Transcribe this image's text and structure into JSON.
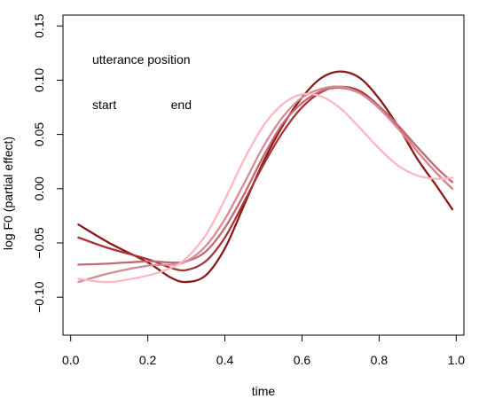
{
  "chart_data": {
    "type": "line",
    "title": "",
    "xlabel": "time",
    "ylabel": "log F0 (partial effect)",
    "xlim": [
      -0.02,
      1.02
    ],
    "ylim": [
      -0.135,
      0.16
    ],
    "xticks": [
      0.0,
      0.2,
      0.4,
      0.6,
      0.8,
      1.0
    ],
    "xtick_labels": [
      "0.0",
      "0.2",
      "0.4",
      "0.6",
      "0.8",
      "1.0"
    ],
    "yticks": [
      -0.1,
      -0.05,
      0.0,
      0.05,
      0.1,
      0.15
    ],
    "ytick_labels": [
      "−0.10",
      "−0.05",
      "0.00",
      "0.05",
      "0.10",
      "0.15"
    ],
    "grid": false,
    "legend": {
      "title": "utterance position",
      "placement": "top-left",
      "gradient_colors": [
        "#8b1a1a",
        "#ffb6c1"
      ],
      "low_label": "start",
      "high_label": "end"
    },
    "series": [
      {
        "color": "#8b1a1a",
        "x": [
          0.02,
          0.1,
          0.2,
          0.26,
          0.3,
          0.35,
          0.4,
          0.45,
          0.5,
          0.55,
          0.6,
          0.65,
          0.7,
          0.75,
          0.8,
          0.85,
          0.9,
          0.95,
          0.99
        ],
        "y": [
          -0.033,
          -0.05,
          -0.068,
          -0.082,
          -0.086,
          -0.08,
          -0.055,
          -0.015,
          0.025,
          0.058,
          0.084,
          0.102,
          0.108,
          0.102,
          0.083,
          0.057,
          0.027,
          0.002,
          -0.019
        ]
      },
      {
        "color": "#a8343a",
        "x": [
          0.02,
          0.1,
          0.2,
          0.26,
          0.3,
          0.35,
          0.4,
          0.45,
          0.5,
          0.55,
          0.6,
          0.65,
          0.7,
          0.75,
          0.8,
          0.85,
          0.9,
          0.95,
          0.99
        ],
        "y": [
          -0.045,
          -0.055,
          -0.065,
          -0.073,
          -0.075,
          -0.067,
          -0.045,
          -0.012,
          0.022,
          0.052,
          0.075,
          0.089,
          0.094,
          0.09,
          0.076,
          0.056,
          0.034,
          0.014,
          0.0
        ]
      },
      {
        "color": "#c06a74",
        "x": [
          0.02,
          0.1,
          0.2,
          0.26,
          0.3,
          0.35,
          0.4,
          0.45,
          0.5,
          0.55,
          0.6,
          0.65,
          0.7,
          0.75,
          0.8,
          0.85,
          0.9,
          0.95,
          0.99
        ],
        "y": [
          -0.07,
          -0.069,
          -0.067,
          -0.068,
          -0.067,
          -0.058,
          -0.036,
          -0.005,
          0.03,
          0.06,
          0.079,
          0.09,
          0.093,
          0.088,
          0.076,
          0.058,
          0.038,
          0.019,
          0.006
        ]
      },
      {
        "color": "#d78b97",
        "x": [
          0.02,
          0.1,
          0.2,
          0.26,
          0.3,
          0.35,
          0.4,
          0.45,
          0.5,
          0.55,
          0.6,
          0.65,
          0.7,
          0.75,
          0.8,
          0.85,
          0.9,
          0.95,
          0.99
        ],
        "y": [
          -0.086,
          -0.078,
          -0.071,
          -0.07,
          -0.067,
          -0.053,
          -0.028,
          0.005,
          0.039,
          0.066,
          0.084,
          0.092,
          0.094,
          0.088,
          0.074,
          0.055,
          0.034,
          0.014,
          0.0
        ]
      },
      {
        "color": "#ffb6c1",
        "x": [
          0.02,
          0.1,
          0.2,
          0.26,
          0.3,
          0.35,
          0.4,
          0.45,
          0.5,
          0.55,
          0.6,
          0.65,
          0.7,
          0.75,
          0.8,
          0.85,
          0.9,
          0.95,
          0.99
        ],
        "y": [
          -0.083,
          -0.086,
          -0.08,
          -0.073,
          -0.064,
          -0.043,
          -0.01,
          0.027,
          0.058,
          0.078,
          0.087,
          0.085,
          0.074,
          0.056,
          0.037,
          0.021,
          0.012,
          0.009,
          0.01
        ]
      }
    ]
  }
}
